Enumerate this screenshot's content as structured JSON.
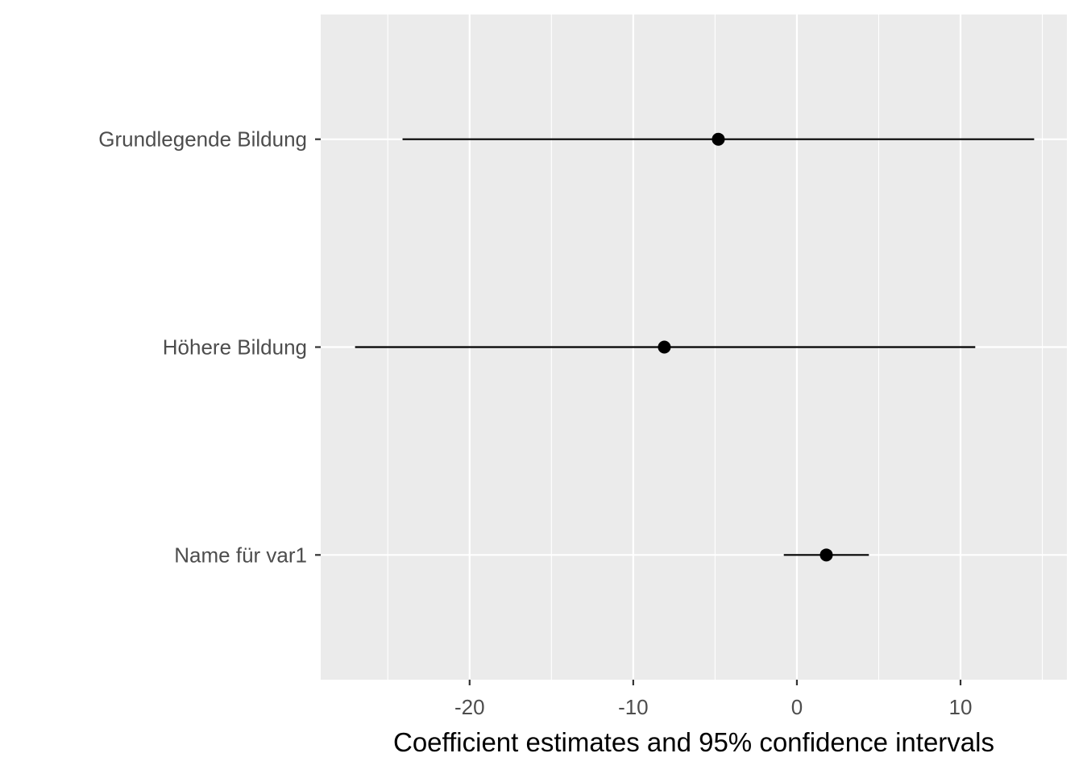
{
  "chart_data": {
    "type": "scatter",
    "title": "",
    "xlabel": "Coefficient estimates and 95% confidence intervals",
    "ylabel": "",
    "xlim": [
      -29.1,
      16.5
    ],
    "x_ticks": [
      -20,
      -10,
      0,
      10
    ],
    "x_tick_labels": [
      "-20",
      "-10",
      "0",
      "10"
    ],
    "x_minor_ticks": [
      -25,
      -15,
      -5,
      5,
      15
    ],
    "categories": [
      "Grundlegende Bildung",
      "Höhere Bildung",
      "Name für var1"
    ],
    "series": [
      {
        "estimate": [
          -4.8,
          -8.1,
          1.8
        ],
        "ci_low": [
          -24.1,
          -27.0,
          -0.8
        ],
        "ci_high": [
          14.5,
          10.9,
          4.4
        ]
      }
    ],
    "grid": true,
    "legend": "none",
    "colors": {
      "panel": "#EBEBEB",
      "grid": "#FFFFFF",
      "marks": "#000000",
      "tick_text": "#4D4D4D"
    }
  }
}
